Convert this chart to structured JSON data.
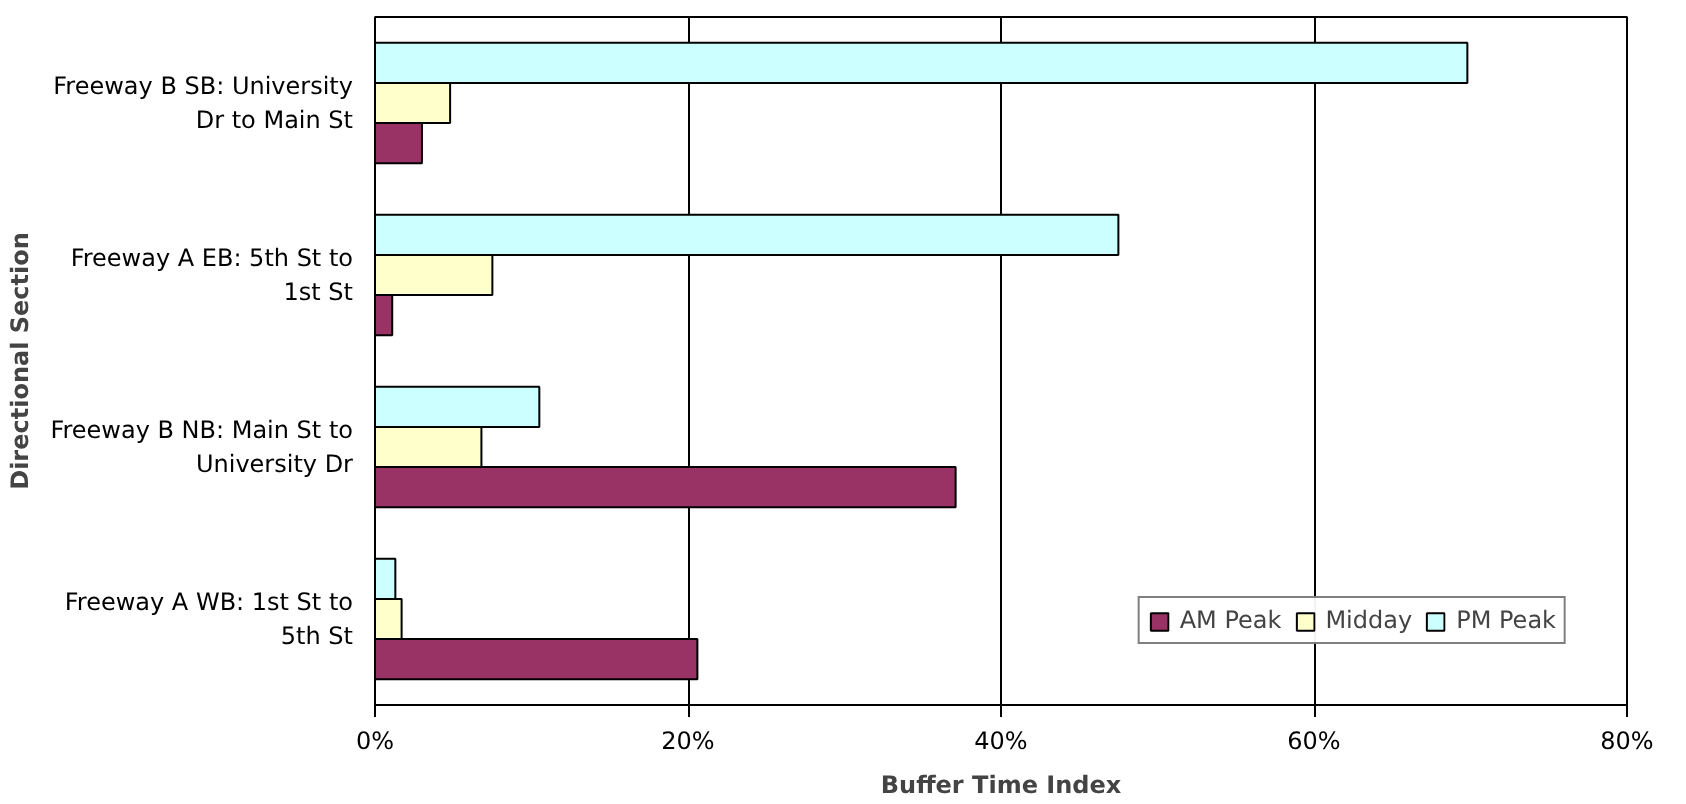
{
  "chart_data": {
    "type": "bar",
    "orientation": "horizontal",
    "xlabel": "Buffer Time Index",
    "ylabel": "Directional Section",
    "categories": [
      "Freeway B SB: University Dr to Main St",
      "Freeway A EB: 5th St to 1st St",
      "Freeway B NB: Main St to University Dr",
      "Freeway A WB: 1st St to 5th St"
    ],
    "series": [
      {
        "name": "AM Peak",
        "color": "#993366",
        "values": [
          3.0,
          1.1,
          37.1,
          20.6
        ]
      },
      {
        "name": "Midday",
        "color": "#ffffcc",
        "values": [
          4.8,
          7.5,
          6.8,
          1.7
        ]
      },
      {
        "name": "PM Peak",
        "color": "#ccffff",
        "values": [
          69.8,
          47.5,
          10.5,
          1.3
        ]
      }
    ],
    "xlim": [
      0,
      80
    ],
    "xticks": [
      {
        "value": 0,
        "label": "0%"
      },
      {
        "value": 20,
        "label": "20%"
      },
      {
        "value": 40,
        "label": "40%"
      },
      {
        "value": 60,
        "label": "60%"
      },
      {
        "value": 80,
        "label": "80%"
      }
    ],
    "grid": "x",
    "legend": "bottom right"
  }
}
